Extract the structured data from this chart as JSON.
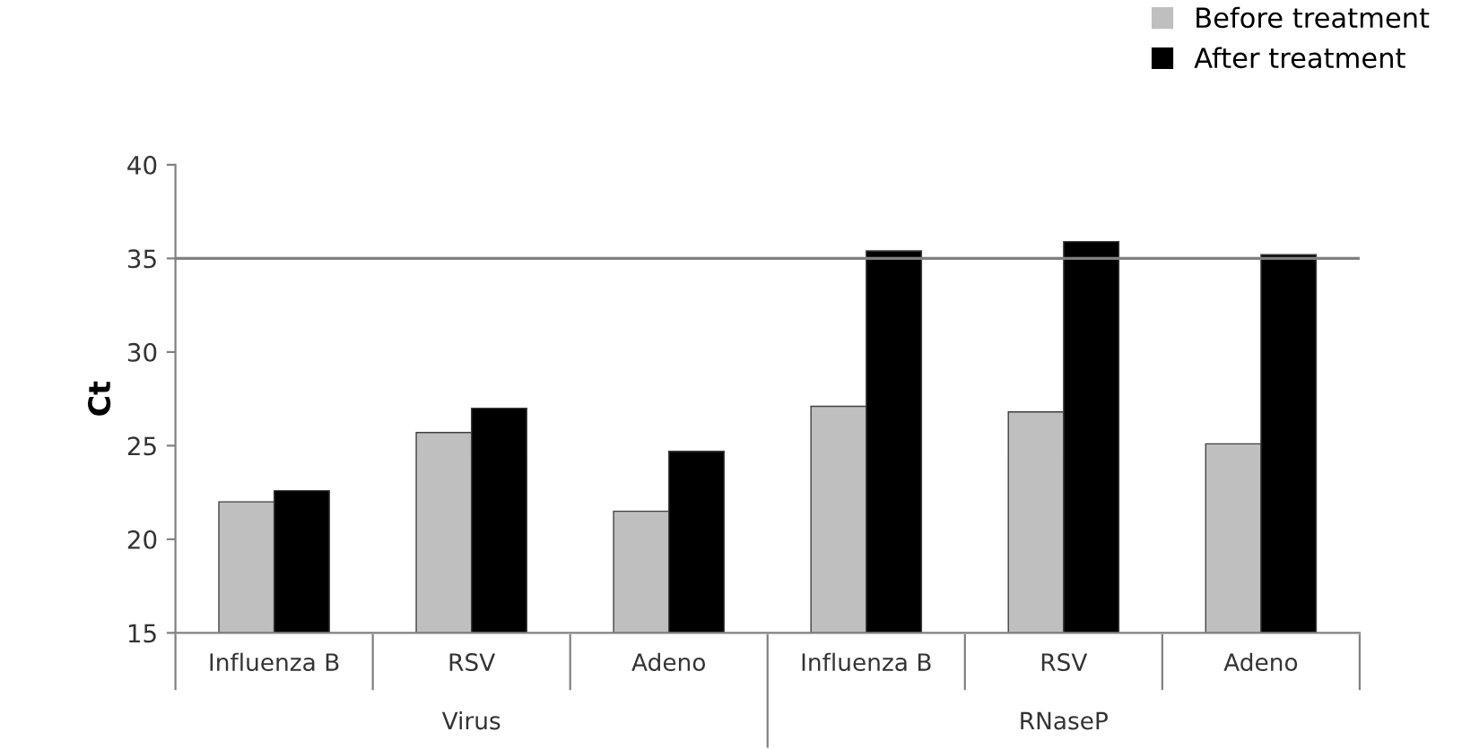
{
  "chart_data": {
    "type": "bar",
    "ylabel": "Ct",
    "categories": [
      "Influenza B",
      "RSV",
      "Adeno",
      "Influenza B",
      "RSV",
      "Adeno"
    ],
    "series": [
      {
        "name": "Before treatment",
        "color": "#bfbfbf",
        "values": [
          22.0,
          25.7,
          21.5,
          27.1,
          26.8,
          25.1
        ]
      },
      {
        "name": "After treatment",
        "color": "#000000",
        "values": [
          22.6,
          27.0,
          24.7,
          35.4,
          35.9,
          35.2
        ]
      }
    ],
    "ylim": [
      15,
      40
    ],
    "yticks": [
      15,
      20,
      25,
      30,
      35,
      40
    ],
    "ref_lines": [
      {
        "axis": "y",
        "value": 35,
        "color": "#808080"
      }
    ],
    "annotations": [
      "Virus",
      "RNaseP"
    ],
    "grid": false,
    "legend": "top right"
  }
}
